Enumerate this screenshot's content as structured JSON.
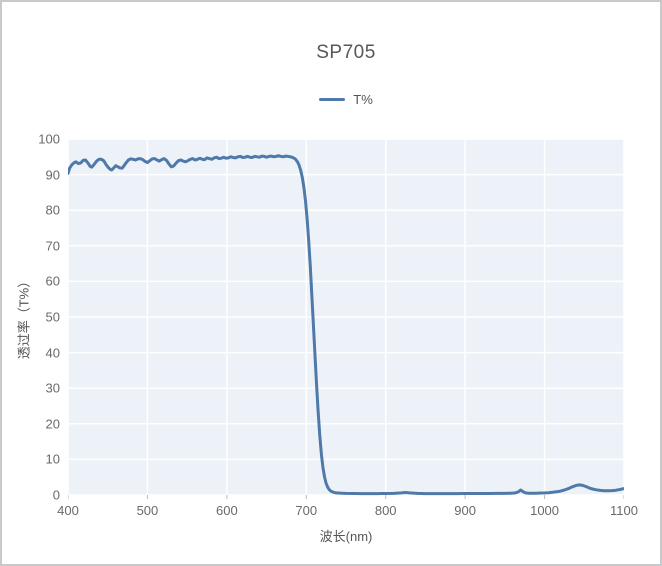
{
  "window": {
    "background": "#ffffff",
    "frame_border_color": "#c6cacc"
  },
  "chart_data": {
    "type": "line",
    "title": "SP705",
    "xlabel": "波长(nm)",
    "ylabel": "透过率（T%）",
    "xlim": [
      400,
      1100
    ],
    "ylim": [
      0,
      100
    ],
    "xticks": [
      400,
      500,
      600,
      700,
      800,
      900,
      1000,
      1100
    ],
    "yticks": [
      0,
      10,
      20,
      30,
      40,
      50,
      60,
      70,
      80,
      90,
      100
    ],
    "grid": true,
    "legend_position": "top-center",
    "colors": {
      "plot_bg": "#edf2f8",
      "grid_line": "#ffffff",
      "tick_mark": "#b6bcc1",
      "series_line": "#4e79a9",
      "title_text": "#575757",
      "tick_text": "#666a6e",
      "axis_title_text": "#555555"
    },
    "legend": [
      {
        "label": "T%",
        "color": "#4e79a9"
      }
    ],
    "series": [
      {
        "name": "T%",
        "color": "#4e79a9",
        "points": [
          [
            400,
            90.3
          ],
          [
            402,
            91.8
          ],
          [
            405,
            92.8
          ],
          [
            408,
            93.4
          ],
          [
            410,
            93.6
          ],
          [
            413,
            93.1
          ],
          [
            416,
            93.3
          ],
          [
            419,
            94.0
          ],
          [
            422,
            94.1
          ],
          [
            425,
            93.3
          ],
          [
            428,
            92.3
          ],
          [
            430,
            92.1
          ],
          [
            433,
            92.9
          ],
          [
            436,
            93.8
          ],
          [
            439,
            94.3
          ],
          [
            442,
            94.3
          ],
          [
            445,
            93.9
          ],
          [
            448,
            92.8
          ],
          [
            450,
            92.2
          ],
          [
            453,
            91.5
          ],
          [
            455,
            91.3
          ],
          [
            458,
            92.0
          ],
          [
            460,
            92.5
          ],
          [
            463,
            92.2
          ],
          [
            465,
            91.9
          ],
          [
            468,
            91.8
          ],
          [
            470,
            92.3
          ],
          [
            473,
            93.3
          ],
          [
            476,
            94.1
          ],
          [
            479,
            94.4
          ],
          [
            482,
            94.3
          ],
          [
            485,
            94.1
          ],
          [
            488,
            94.4
          ],
          [
            491,
            94.5
          ],
          [
            494,
            94.2
          ],
          [
            497,
            93.7
          ],
          [
            500,
            93.4
          ],
          [
            503,
            93.9
          ],
          [
            506,
            94.4
          ],
          [
            509,
            94.5
          ],
          [
            512,
            94.1
          ],
          [
            515,
            93.8
          ],
          [
            518,
            94.2
          ],
          [
            521,
            94.5
          ],
          [
            524,
            94.0
          ],
          [
            527,
            93.0
          ],
          [
            530,
            92.2
          ],
          [
            533,
            92.4
          ],
          [
            536,
            93.2
          ],
          [
            539,
            93.9
          ],
          [
            542,
            94.1
          ],
          [
            545,
            93.8
          ],
          [
            548,
            93.6
          ],
          [
            551,
            93.9
          ],
          [
            554,
            94.3
          ],
          [
            557,
            94.5
          ],
          [
            560,
            94.1
          ],
          [
            563,
            94.3
          ],
          [
            566,
            94.6
          ],
          [
            569,
            94.3
          ],
          [
            572,
            94.2
          ],
          [
            575,
            94.7
          ],
          [
            578,
            94.5
          ],
          [
            581,
            94.3
          ],
          [
            584,
            94.7
          ],
          [
            587,
            94.9
          ],
          [
            590,
            94.5
          ],
          [
            593,
            94.6
          ],
          [
            596,
            94.9
          ],
          [
            599,
            94.6
          ],
          [
            602,
            94.7
          ],
          [
            605,
            95.0
          ],
          [
            608,
            94.8
          ],
          [
            611,
            94.7
          ],
          [
            614,
            95.0
          ],
          [
            617,
            95.1
          ],
          [
            620,
            94.8
          ],
          [
            623,
            94.9
          ],
          [
            626,
            95.1
          ],
          [
            629,
            94.9
          ],
          [
            632,
            94.8
          ],
          [
            635,
            95.1
          ],
          [
            638,
            95.0
          ],
          [
            641,
            94.9
          ],
          [
            644,
            95.2
          ],
          [
            647,
            95.1
          ],
          [
            650,
            94.9
          ],
          [
            653,
            95.1
          ],
          [
            656,
            95.2
          ],
          [
            659,
            95.0
          ],
          [
            662,
            95.1
          ],
          [
            665,
            95.3
          ],
          [
            668,
            95.1
          ],
          [
            671,
            95.0
          ],
          [
            674,
            95.2
          ],
          [
            677,
            95.1
          ],
          [
            680,
            95.0
          ],
          [
            683,
            94.8
          ],
          [
            686,
            94.4
          ],
          [
            689,
            93.6
          ],
          [
            691,
            92.6
          ],
          [
            693,
            91.2
          ],
          [
            695,
            89.2
          ],
          [
            697,
            86.4
          ],
          [
            699,
            82.6
          ],
          [
            701,
            77.6
          ],
          [
            703,
            71.4
          ],
          [
            705,
            64.2
          ],
          [
            707,
            56.2
          ],
          [
            709,
            47.8
          ],
          [
            711,
            39.2
          ],
          [
            713,
            30.8
          ],
          [
            715,
            23.2
          ],
          [
            717,
            16.6
          ],
          [
            719,
            11.4
          ],
          [
            721,
            7.6
          ],
          [
            723,
            5.0
          ],
          [
            725,
            3.3
          ],
          [
            727,
            2.2
          ],
          [
            729,
            1.5
          ],
          [
            731,
            1.1
          ],
          [
            734,
            0.8
          ],
          [
            737,
            0.6
          ],
          [
            740,
            0.55
          ],
          [
            745,
            0.5
          ],
          [
            750,
            0.45
          ],
          [
            760,
            0.42
          ],
          [
            770,
            0.4
          ],
          [
            780,
            0.4
          ],
          [
            790,
            0.4
          ],
          [
            800,
            0.42
          ],
          [
            810,
            0.45
          ],
          [
            820,
            0.6
          ],
          [
            825,
            0.7
          ],
          [
            830,
            0.6
          ],
          [
            840,
            0.45
          ],
          [
            850,
            0.4
          ],
          [
            860,
            0.4
          ],
          [
            870,
            0.4
          ],
          [
            880,
            0.4
          ],
          [
            890,
            0.4
          ],
          [
            900,
            0.42
          ],
          [
            910,
            0.42
          ],
          [
            920,
            0.42
          ],
          [
            930,
            0.42
          ],
          [
            940,
            0.45
          ],
          [
            950,
            0.45
          ],
          [
            958,
            0.5
          ],
          [
            963,
            0.6
          ],
          [
            967,
            0.9
          ],
          [
            970,
            1.4
          ],
          [
            973,
            0.9
          ],
          [
            976,
            0.6
          ],
          [
            980,
            0.5
          ],
          [
            985,
            0.5
          ],
          [
            990,
            0.5
          ],
          [
            995,
            0.55
          ],
          [
            1000,
            0.6
          ],
          [
            1005,
            0.65
          ],
          [
            1010,
            0.75
          ],
          [
            1015,
            0.9
          ],
          [
            1020,
            1.1
          ],
          [
            1025,
            1.4
          ],
          [
            1030,
            1.8
          ],
          [
            1035,
            2.3
          ],
          [
            1040,
            2.7
          ],
          [
            1044,
            2.85
          ],
          [
            1048,
            2.7
          ],
          [
            1052,
            2.4
          ],
          [
            1056,
            2.0
          ],
          [
            1060,
            1.7
          ],
          [
            1065,
            1.45
          ],
          [
            1070,
            1.3
          ],
          [
            1075,
            1.2
          ],
          [
            1080,
            1.2
          ],
          [
            1085,
            1.25
          ],
          [
            1090,
            1.35
          ],
          [
            1095,
            1.55
          ],
          [
            1100,
            1.8
          ]
        ]
      }
    ]
  }
}
